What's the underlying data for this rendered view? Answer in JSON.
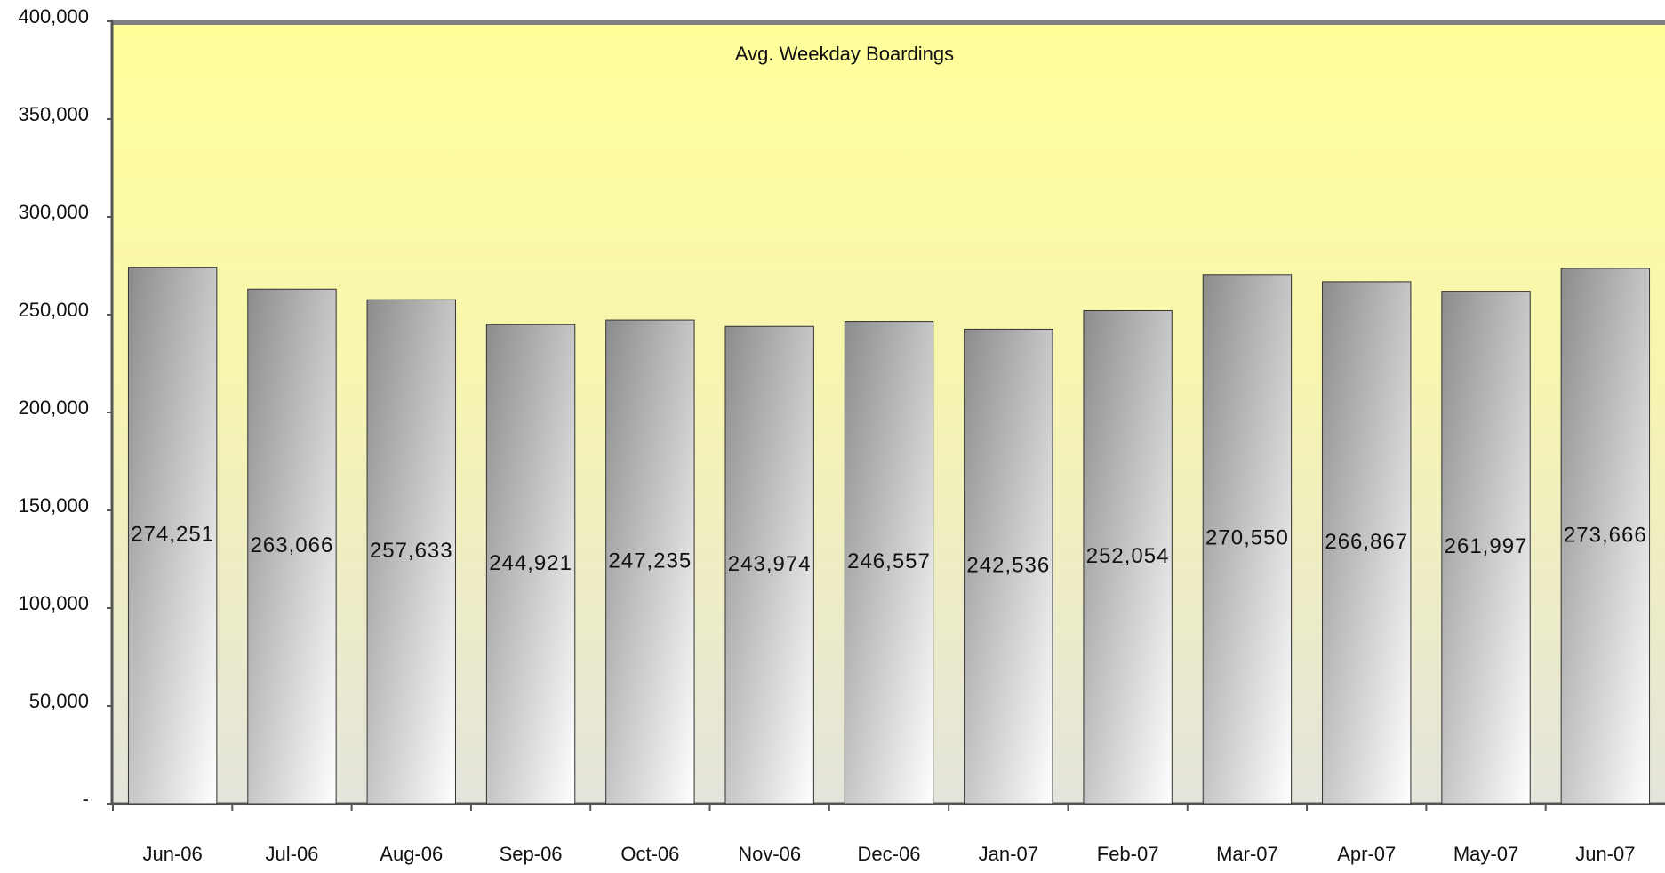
{
  "chart_data": {
    "type": "bar",
    "title": "Avg. Weekday Boardings",
    "categories": [
      "Jun-06",
      "Jul-06",
      "Aug-06",
      "Sep-06",
      "Oct-06",
      "Nov-06",
      "Dec-06",
      "Jan-07",
      "Feb-07",
      "Mar-07",
      "Apr-07",
      "May-07",
      "Jun-07"
    ],
    "values": [
      274251,
      263066,
      257633,
      244921,
      247235,
      243974,
      246557,
      242536,
      252054,
      270550,
      266867,
      261997,
      273666
    ],
    "value_labels": [
      "274,251",
      "263,066",
      "257,633",
      "244,921",
      "247,235",
      "243,974",
      "246,557",
      "242,536",
      "252,054",
      "270,550",
      "266,867",
      "261,997",
      "273,666"
    ],
    "color": "#9a9a9a",
    "ylim": [
      0,
      400000
    ],
    "yticks": [
      {
        "value": 0,
        "label": "-"
      },
      {
        "value": 50000,
        "label": "50,000"
      },
      {
        "value": 100000,
        "label": "100,000"
      },
      {
        "value": 150000,
        "label": "150,000"
      },
      {
        "value": 200000,
        "label": "200,000"
      },
      {
        "value": 250000,
        "label": "250,000"
      },
      {
        "value": 300000,
        "label": "300,000"
      },
      {
        "value": 350000,
        "label": "350,000"
      },
      {
        "value": 400000,
        "label": "400,000"
      }
    ],
    "grid": false
  }
}
